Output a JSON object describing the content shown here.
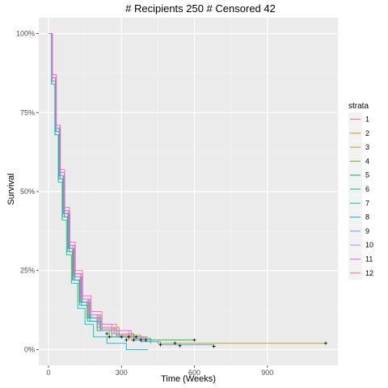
{
  "chart_data": {
    "type": "line",
    "subtype": "kaplan-meier step curves",
    "title": "# Recipients 250 # Censored 42",
    "xlabel": "Time (Weeks)",
    "ylabel": "Survival",
    "xlim": [
      -40,
      1190
    ],
    "ylim": [
      -0.05,
      1.05
    ],
    "x_ticks": [
      0,
      300,
      600,
      900
    ],
    "x_tick_labels": [
      "0",
      "300",
      "600",
      "900"
    ],
    "y_ticks": [
      0,
      0.25,
      0.5,
      0.75,
      1.0
    ],
    "y_tick_labels": [
      "0%",
      "25%",
      "50%",
      "75%",
      "100%"
    ],
    "grid": true,
    "legend": {
      "title": "strata",
      "position": "right"
    },
    "censor_marker": "+",
    "series": [
      {
        "name": "1",
        "color": "#F8766D",
        "values": [
          [
            0,
            1.0
          ],
          [
            15,
            0.86
          ],
          [
            30,
            0.7
          ],
          [
            45,
            0.55
          ],
          [
            60,
            0.44
          ],
          [
            80,
            0.33
          ],
          [
            100,
            0.24
          ],
          [
            130,
            0.16
          ],
          [
            160,
            0.11
          ],
          [
            200,
            0.07
          ],
          [
            260,
            0.05
          ],
          [
            330,
            0.04
          ],
          [
            400,
            0.03
          ]
        ],
        "censored": [
          [
            240,
            0.05
          ],
          [
            380,
            0.03
          ]
        ]
      },
      {
        "name": "2",
        "color": "#DE8C00",
        "values": [
          [
            0,
            1.0
          ],
          [
            14,
            0.85
          ],
          [
            28,
            0.69
          ],
          [
            44,
            0.55
          ],
          [
            62,
            0.43
          ],
          [
            82,
            0.32
          ],
          [
            104,
            0.23
          ],
          [
            132,
            0.15
          ],
          [
            165,
            0.1
          ],
          [
            210,
            0.065
          ],
          [
            280,
            0.045
          ],
          [
            340,
            0.03
          ],
          [
            420,
            0.02
          ]
        ],
        "censored": [
          [
            300,
            0.04
          ]
        ]
      },
      {
        "name": "3",
        "color": "#B79F00",
        "values": [
          [
            0,
            1.0
          ],
          [
            16,
            0.87
          ],
          [
            32,
            0.71
          ],
          [
            48,
            0.56
          ],
          [
            66,
            0.44
          ],
          [
            86,
            0.33
          ],
          [
            108,
            0.24
          ],
          [
            136,
            0.16
          ],
          [
            170,
            0.11
          ],
          [
            215,
            0.07
          ],
          [
            290,
            0.045
          ],
          [
            380,
            0.025
          ],
          [
            450,
            0.02
          ],
          [
            1140,
            0.02
          ]
        ],
        "censored": [
          [
            520,
            0.02
          ],
          [
            1140,
            0.02
          ]
        ]
      },
      {
        "name": "4",
        "color": "#7CAE00",
        "values": [
          [
            0,
            1.0
          ],
          [
            13,
            0.84
          ],
          [
            27,
            0.68
          ],
          [
            42,
            0.54
          ],
          [
            58,
            0.42
          ],
          [
            78,
            0.31
          ],
          [
            98,
            0.22
          ],
          [
            126,
            0.15
          ],
          [
            158,
            0.1
          ],
          [
            200,
            0.06
          ],
          [
            260,
            0.04
          ],
          [
            330,
            0.03
          ]
        ],
        "censored": [
          [
            250,
            0.04
          ]
        ]
      },
      {
        "name": "5",
        "color": "#00BA38",
        "values": [
          [
            0,
            1.0
          ],
          [
            15,
            0.85
          ],
          [
            30,
            0.7
          ],
          [
            46,
            0.55
          ],
          [
            64,
            0.43
          ],
          [
            84,
            0.32
          ],
          [
            106,
            0.23
          ],
          [
            134,
            0.15
          ],
          [
            168,
            0.1
          ],
          [
            210,
            0.07
          ],
          [
            270,
            0.05
          ],
          [
            350,
            0.035
          ],
          [
            420,
            0.03
          ],
          [
            600,
            0.03
          ]
        ],
        "censored": [
          [
            600,
            0.03
          ]
        ]
      },
      {
        "name": "6",
        "color": "#00C08B",
        "values": [
          [
            0,
            1.0
          ],
          [
            14,
            0.86
          ],
          [
            29,
            0.7
          ],
          [
            44,
            0.55
          ],
          [
            61,
            0.43
          ],
          [
            80,
            0.32
          ],
          [
            102,
            0.22
          ],
          [
            128,
            0.14
          ],
          [
            160,
            0.09
          ],
          [
            200,
            0.06
          ],
          [
            250,
            0.04
          ],
          [
            320,
            0.03
          ]
        ],
        "censored": [
          [
            320,
            0.03
          ]
        ]
      },
      {
        "name": "7",
        "color": "#00BFC4",
        "values": [
          [
            0,
            1.0
          ],
          [
            12,
            0.84
          ],
          [
            26,
            0.68
          ],
          [
            40,
            0.53
          ],
          [
            56,
            0.41
          ],
          [
            74,
            0.3
          ],
          [
            94,
            0.21
          ],
          [
            120,
            0.13
          ],
          [
            150,
            0.08
          ],
          [
            185,
            0.04
          ],
          [
            240,
            0.02
          ],
          [
            320,
            0.0
          ],
          [
            410,
            0.0
          ]
        ],
        "censored": []
      },
      {
        "name": "8",
        "color": "#00B4F0",
        "values": [
          [
            0,
            1.0
          ],
          [
            15,
            0.85
          ],
          [
            31,
            0.69
          ],
          [
            47,
            0.54
          ],
          [
            65,
            0.42
          ],
          [
            85,
            0.31
          ],
          [
            107,
            0.22
          ],
          [
            135,
            0.14
          ],
          [
            170,
            0.09
          ],
          [
            215,
            0.06
          ],
          [
            280,
            0.04
          ],
          [
            350,
            0.03
          ],
          [
            420,
            0.02
          ]
        ],
        "censored": [
          [
            350,
            0.03
          ]
        ]
      },
      {
        "name": "9",
        "color": "#619CFF",
        "values": [
          [
            0,
            1.0
          ],
          [
            16,
            0.86
          ],
          [
            32,
            0.7
          ],
          [
            49,
            0.55
          ],
          [
            67,
            0.43
          ],
          [
            88,
            0.32
          ],
          [
            110,
            0.23
          ],
          [
            140,
            0.15
          ],
          [
            175,
            0.1
          ],
          [
            220,
            0.06
          ],
          [
            290,
            0.04
          ],
          [
            380,
            0.025
          ],
          [
            460,
            0.015
          ],
          [
            680,
            0.01
          ]
        ],
        "censored": [
          [
            460,
            0.015
          ],
          [
            540,
            0.012
          ],
          [
            680,
            0.01
          ]
        ]
      },
      {
        "name": "10",
        "color": "#C77CFF",
        "values": [
          [
            0,
            1.0
          ],
          [
            14,
            0.85
          ],
          [
            30,
            0.7
          ],
          [
            46,
            0.55
          ],
          [
            63,
            0.43
          ],
          [
            83,
            0.32
          ],
          [
            105,
            0.23
          ],
          [
            132,
            0.16
          ],
          [
            165,
            0.11
          ],
          [
            205,
            0.08
          ],
          [
            260,
            0.06
          ],
          [
            330,
            0.04
          ],
          [
            390,
            0.03
          ]
        ],
        "censored": [
          [
            330,
            0.04
          ]
        ]
      },
      {
        "name": "11",
        "color": "#F564E3",
        "values": [
          [
            0,
            1.0
          ],
          [
            15,
            0.86
          ],
          [
            31,
            0.71
          ],
          [
            47,
            0.56
          ],
          [
            65,
            0.44
          ],
          [
            85,
            0.33
          ],
          [
            108,
            0.24
          ],
          [
            136,
            0.16
          ],
          [
            170,
            0.11
          ],
          [
            210,
            0.07
          ],
          [
            270,
            0.05
          ],
          [
            340,
            0.04
          ],
          [
            400,
            0.03
          ]
        ],
        "censored": [
          [
            400,
            0.03
          ]
        ]
      },
      {
        "name": "12",
        "color": "#FF64B0",
        "values": [
          [
            0,
            1.0
          ],
          [
            16,
            0.87
          ],
          [
            32,
            0.71
          ],
          [
            48,
            0.57
          ],
          [
            66,
            0.45
          ],
          [
            86,
            0.34
          ],
          [
            110,
            0.25
          ],
          [
            140,
            0.17
          ],
          [
            175,
            0.12
          ],
          [
            220,
            0.08
          ],
          [
            280,
            0.06
          ],
          [
            340,
            0.04
          ],
          [
            410,
            0.04
          ]
        ],
        "censored": [
          [
            360,
            0.04
          ]
        ]
      }
    ]
  }
}
